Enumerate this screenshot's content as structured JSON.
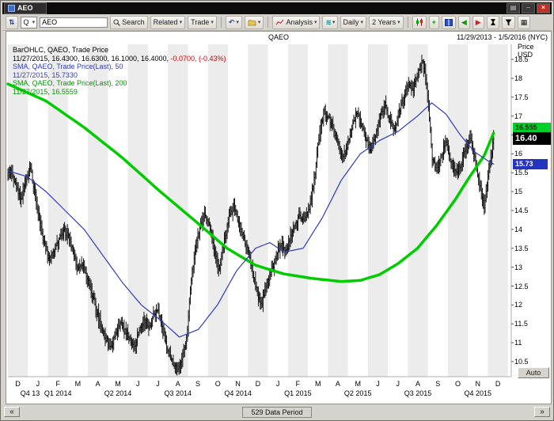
{
  "titlebar": {
    "tab": "AEO"
  },
  "icons": {
    "nav": "⇅",
    "dropdown": "▾",
    "undo": "↶",
    "wave": "≋",
    "pan_left": "◀",
    "pan_right": "▶",
    "grid": "▦",
    "plus": "+",
    "scroll_left": "«",
    "scroll_right": "»",
    "minimize": "–",
    "close": "×",
    "menu": "▤"
  },
  "toolbar": {
    "security_type": "Q",
    "symbol_input": "AEO",
    "search_label": "Search",
    "related_label": "Related",
    "trade_label": "Trade",
    "analysis_label": "Analysis",
    "period_label": "Daily",
    "range_label": "2 Years"
  },
  "chart_header": {
    "title": "QAEO",
    "date_range": "11/29/2013 - 1/5/2016 (NYC)"
  },
  "legend": {
    "bar_line1": "BarOHLC, QAEO, Trade Price",
    "bar_line2": "11/27/2015, 16.4300, 16.6300, 16.1000, 16.4000,",
    "bar_line2_change": " -0.0700, (-0.43%)",
    "sma50_line1": "SMA, QAEO, Trade Price(Last), 50",
    "sma50_line2": "11/27/2015, 15.7330",
    "sma200_line1": "SMA, QAEO, Trade Price(Last), 200",
    "sma200_line2": "11/27/2015, 16.5559"
  },
  "y_axis": {
    "title_line1": "Price",
    "title_line2": "USD",
    "labels": [
      "18.5",
      "18",
      "17.5",
      "17",
      "16.5",
      "16",
      "15.5",
      "15",
      "14.5",
      "14",
      "13.5",
      "13",
      "12.5",
      "12",
      "11.5",
      "11",
      "10.5"
    ]
  },
  "price_tags": {
    "sma200": {
      "label": "16.555",
      "value": 16.555,
      "bg": "#00d02a",
      "fg": "#002a00"
    },
    "last": {
      "label": "16.40",
      "value": 16.4,
      "bg": "#000000",
      "fg": "#ffffff"
    },
    "sma50": {
      "label": "15.73",
      "value": 15.73,
      "bg": "#2433c0",
      "fg": "#ffffff"
    }
  },
  "x_axis": {
    "months": [
      "D",
      "J",
      "F",
      "M",
      "A",
      "M",
      "J",
      "J",
      "A",
      "S",
      "O",
      "N",
      "D",
      "J",
      "F",
      "M",
      "A",
      "M",
      "J",
      "J",
      "A",
      "S",
      "O",
      "N",
      "D"
    ],
    "quarters": [
      {
        "label": "Q4 13",
        "start": 0,
        "end": 1
      },
      {
        "label": "Q1 2014",
        "start": 1,
        "end": 4
      },
      {
        "label": "Q2 2014",
        "start": 4,
        "end": 7
      },
      {
        "label": "Q3 2014",
        "start": 7,
        "end": 10
      },
      {
        "label": "Q4 2014",
        "start": 10,
        "end": 13
      },
      {
        "label": "Q1 2015",
        "start": 13,
        "end": 16
      },
      {
        "label": "Q2 2015",
        "start": 16,
        "end": 19
      },
      {
        "label": "Q3 2015",
        "start": 19,
        "end": 22
      },
      {
        "label": "Q4 2015",
        "start": 22,
        "end": 25
      }
    ]
  },
  "statusbar": {
    "data_period": "529 Data Period",
    "auto_label": "Auto"
  },
  "colors": {
    "band": "#ececec",
    "bar": "#000000",
    "sma50": "#2f3db8",
    "sma200": "#00cc00",
    "change_negative": "#cc0000"
  },
  "chart_data": {
    "type": "ohlc-bar",
    "symbol": "QAEO",
    "periods": 529,
    "ylim": [
      10.1,
      18.9
    ],
    "months_shown": 25.17,
    "data_fraction": 0.965,
    "bars_per_week": 5,
    "last_bar": {
      "date": "11/27/2015",
      "open": 16.43,
      "high": 16.63,
      "low": 16.1,
      "close": 16.4,
      "change": -0.07,
      "change_pct": -0.43
    },
    "sma50_last": 15.733,
    "sma200_last": 16.5559,
    "weekly_closes": [
      15.5,
      15.1,
      14.8,
      15.3,
      15.6,
      14.9,
      14.1,
      13.6,
      13.2,
      13.4,
      13.7,
      14.0,
      13.8,
      13.4,
      12.9,
      13.1,
      12.7,
      12.3,
      11.8,
      11.4,
      11.1,
      10.9,
      11.2,
      11.5,
      11.3,
      11.1,
      10.9,
      11.3,
      11.6,
      11.4,
      11.7,
      11.9,
      11.3,
      10.8,
      10.5,
      10.3,
      10.6,
      11.1,
      12.7,
      13.6,
      14.2,
      14.4,
      14.0,
      13.4,
      12.9,
      13.7,
      14.3,
      14.6,
      14.2,
      13.8,
      13.4,
      12.9,
      12.3,
      12.0,
      12.6,
      12.9,
      13.3,
      13.6,
      13.4,
      13.8,
      14.1,
      14.4,
      14.2,
      14.6,
      15.3,
      16.4,
      17.1,
      17.0,
      16.7,
      16.3,
      15.9,
      16.2,
      16.7,
      17.1,
      16.8,
      16.4,
      16.1,
      16.5,
      17.0,
      17.3,
      16.9,
      16.6,
      17.1,
      17.5,
      17.9,
      17.7,
      18.1,
      18.5,
      17.6,
      15.9,
      15.6,
      16.0,
      16.3,
      15.8,
      15.5,
      15.7,
      16.1,
      16.4,
      15.9,
      15.2,
      14.6,
      15.6,
      16.4
    ],
    "sma50_points": [
      [
        0,
        15.55
      ],
      [
        4,
        15.4
      ],
      [
        8,
        15.0
      ],
      [
        12,
        14.5
      ],
      [
        16,
        14.0
      ],
      [
        20,
        13.3
      ],
      [
        24,
        12.6
      ],
      [
        28,
        12.0
      ],
      [
        32,
        11.6
      ],
      [
        36,
        11.15
      ],
      [
        40,
        11.35
      ],
      [
        44,
        12.0
      ],
      [
        48,
        12.9
      ],
      [
        52,
        13.5
      ],
      [
        55,
        13.65
      ],
      [
        58,
        13.4
      ],
      [
        62,
        13.5
      ],
      [
        66,
        14.3
      ],
      [
        70,
        15.3
      ],
      [
        74,
        16.0
      ],
      [
        78,
        16.35
      ],
      [
        82,
        16.6
      ],
      [
        86,
        17.0
      ],
      [
        89,
        17.35
      ],
      [
        92,
        17.05
      ],
      [
        95,
        16.5
      ],
      [
        98,
        16.05
      ],
      [
        101,
        15.8
      ],
      [
        102,
        15.73
      ]
    ],
    "sma200_points": [
      [
        0,
        17.85
      ],
      [
        8,
        17.4
      ],
      [
        16,
        16.7
      ],
      [
        24,
        15.9
      ],
      [
        32,
        15.0
      ],
      [
        40,
        14.15
      ],
      [
        46,
        13.5
      ],
      [
        52,
        13.05
      ],
      [
        58,
        12.82
      ],
      [
        64,
        12.7
      ],
      [
        70,
        12.62
      ],
      [
        74,
        12.65
      ],
      [
        78,
        12.8
      ],
      [
        82,
        13.1
      ],
      [
        86,
        13.5
      ],
      [
        90,
        14.1
      ],
      [
        94,
        14.8
      ],
      [
        97,
        15.4
      ],
      [
        100,
        15.95
      ],
      [
        102,
        16.55
      ]
    ]
  }
}
